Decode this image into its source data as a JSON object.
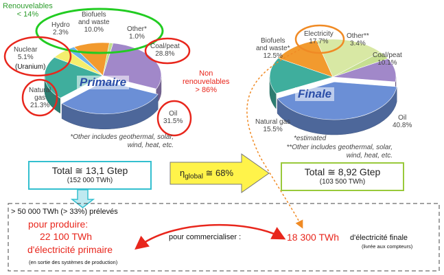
{
  "chart_data": [
    {
      "type": "pie",
      "title": "Primaire",
      "categories": [
        "Coal/peat",
        "Oil",
        "Natural gas",
        "Nuclear",
        "Hydro",
        "Biofuels and waste",
        "Other*"
      ],
      "values": [
        28.8,
        31.5,
        21.3,
        5.1,
        2.3,
        10.0,
        1.0
      ],
      "value_labels": [
        "28.8%",
        "31.5%",
        "21.3%",
        "5.1%",
        "2.3%",
        "10.0%",
        "1.0%"
      ],
      "colors": [
        "#a188c9",
        "#6b8fd6",
        "#3fae9d",
        "#f4ee6e",
        "#6cb3e8",
        "#f29a2e",
        "#bfe08a"
      ],
      "footnote": "*Other includes geothermal, solar, wind, heat, etc."
    },
    {
      "type": "pie",
      "title": "Finale",
      "categories": [
        "Electricity",
        "Other**",
        "Coal/peat",
        "Oil",
        "Natural gas",
        "Biofuels and waste*"
      ],
      "values": [
        17.7,
        3.4,
        10.1,
        40.8,
        15.5,
        12.5
      ],
      "value_labels": [
        "17.7%",
        "3.4%",
        "10.1%",
        "40.8%",
        "15.5%",
        "12.5%"
      ],
      "colors": [
        "#d8e8a4",
        "#c6df90",
        "#a188c9",
        "#6b8fd6",
        "#3fae9d",
        "#f29a2e"
      ],
      "footnote1": "*estimated",
      "footnote2": "**Other includes geothermal, solar, wind, heat, etc."
    }
  ],
  "annotations": {
    "renouvelables": "Renouvelables",
    "renouvelables_pct": "< 14%",
    "non_renouvelables": "Non renouvelables",
    "non_renouvelables_pct": "> 86%",
    "uranium": "(Uranium)"
  },
  "totals": {
    "primary": {
      "main": "Total ≅ 13,1 Gtep",
      "sub": "(152 000 TWh)"
    },
    "final": {
      "main": "Total ≅ 8,92 Gtep",
      "sub": "(103 500 TWh)"
    },
    "efficiency": "η",
    "efficiency_sub": "global",
    "efficiency_value": " ≅ 68%"
  },
  "bottom": {
    "preleves": "> 50 000 TWh (> 33%) prélevés",
    "pour_produire": "pour produire:",
    "twh_primary": "22 100 TWh",
    "elec_primaire": "d'électricité primaire",
    "en_sortie": "(en sortie des systèmes de production)",
    "pour_commercialiser": "pour commercialiser :",
    "twh_final": "18 300 TWh",
    "elec_finale": "d'électricité finale",
    "livree": "(livrée aux compteurs)"
  },
  "colors": {
    "accent_red": "#e8261c",
    "accent_green": "#22cc22",
    "box_cyan": "#33bfcf",
    "box_green": "#99c93a",
    "arrow_yellow": "#fff34a"
  }
}
